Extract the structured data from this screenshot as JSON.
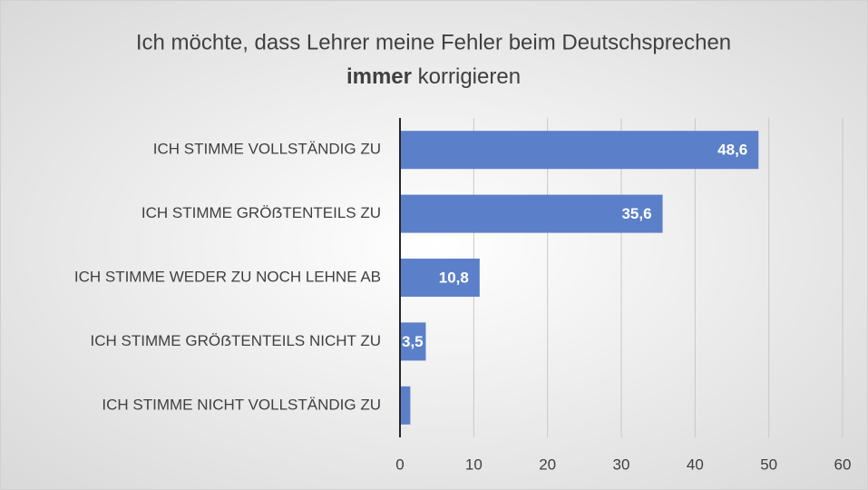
{
  "chart_data": {
    "type": "barh",
    "title": {
      "line1": "Ich möchte, dass Lehrer meine Fehler beim Deutschsprechen",
      "emphasis": "immer",
      "line2": "korrigieren"
    },
    "categories": [
      "ICH STIMME VOLLSTÄNDIG ZU",
      "ICH STIMME GRÖẞTENTEILS ZU",
      "ICH STIMME WEDER ZU NOCH LEHNE AB",
      "ICH STIMME GRÖẞTENTEILS NICHT ZU",
      "ICH STIMME NICHT VOLLSTÄNDIG ZU"
    ],
    "values": [
      48.6,
      35.6,
      10.8,
      3.5,
      1.4
    ],
    "value_labels": [
      "48,6",
      "35,6",
      "10,8",
      "3,5",
      null
    ],
    "color": "#5b80c9",
    "xlim": [
      0,
      60
    ],
    "xticks": [
      0,
      10,
      20,
      30,
      40,
      50,
      60
    ],
    "grid": true
  }
}
